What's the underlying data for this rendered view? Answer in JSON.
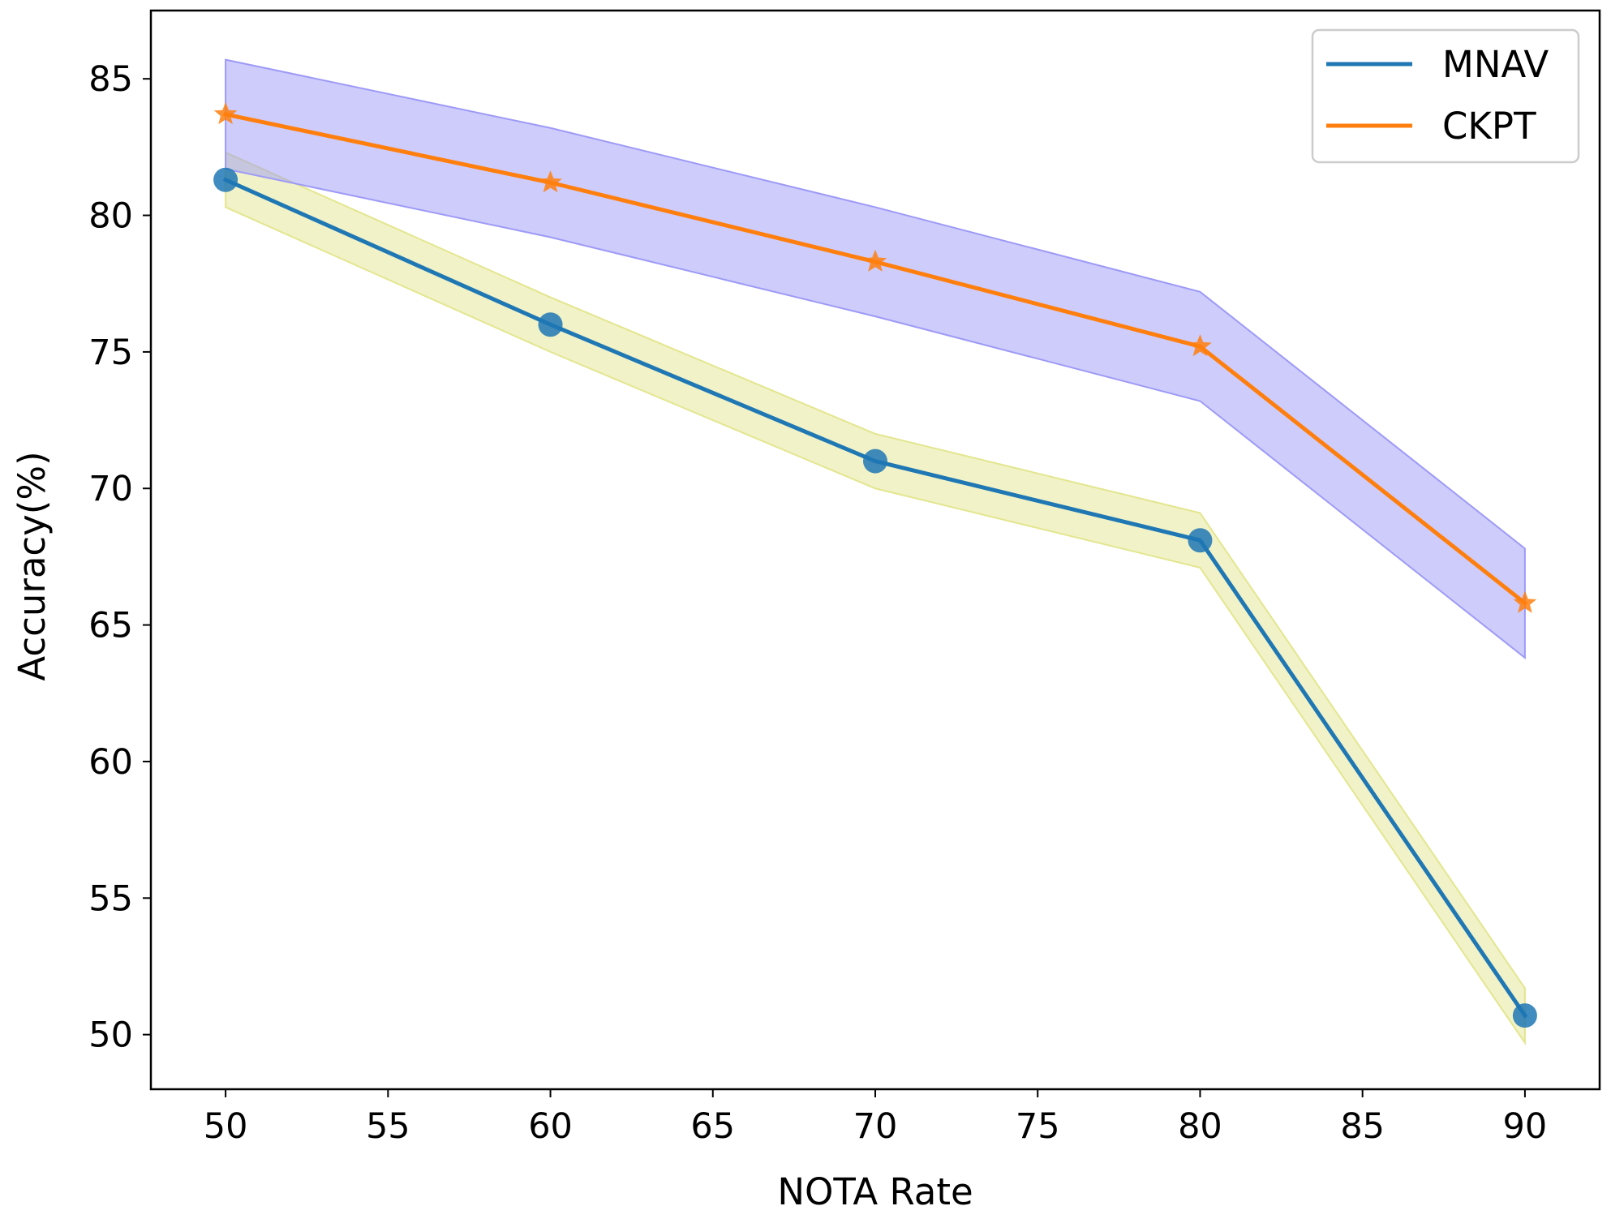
{
  "chart_data": {
    "type": "line",
    "title": "",
    "xlabel": "NOTA Rate",
    "ylabel": "Accuracy(%)",
    "xlim": [
      47.7,
      92.3
    ],
    "ylim": [
      48.0,
      87.5
    ],
    "xticks": [
      50,
      55,
      60,
      65,
      70,
      75,
      80,
      85,
      90
    ],
    "yticks": [
      50,
      55,
      60,
      65,
      70,
      75,
      80,
      85
    ],
    "grid": false,
    "legend_position": "top-right",
    "x": [
      50,
      60,
      70,
      80,
      90
    ],
    "series": [
      {
        "name": "MNAV",
        "marker": "circle",
        "color": "#1f77b4",
        "band_color": "#e3e68f",
        "values": [
          81.3,
          76.0,
          71.0,
          68.1,
          50.7
        ],
        "band_upper": [
          82.3,
          77.0,
          72.0,
          69.1,
          51.7
        ],
        "band_lower": [
          80.3,
          75.0,
          70.0,
          67.1,
          49.7
        ]
      },
      {
        "name": "CKPT",
        "marker": "star",
        "color": "#ff7f0e",
        "band_color": "#9d9af7",
        "values": [
          83.7,
          81.2,
          78.3,
          75.2,
          65.8
        ],
        "band_upper": [
          85.7,
          83.2,
          80.3,
          77.2,
          67.8
        ],
        "band_lower": [
          81.7,
          79.2,
          76.3,
          73.2,
          63.8
        ]
      }
    ]
  }
}
